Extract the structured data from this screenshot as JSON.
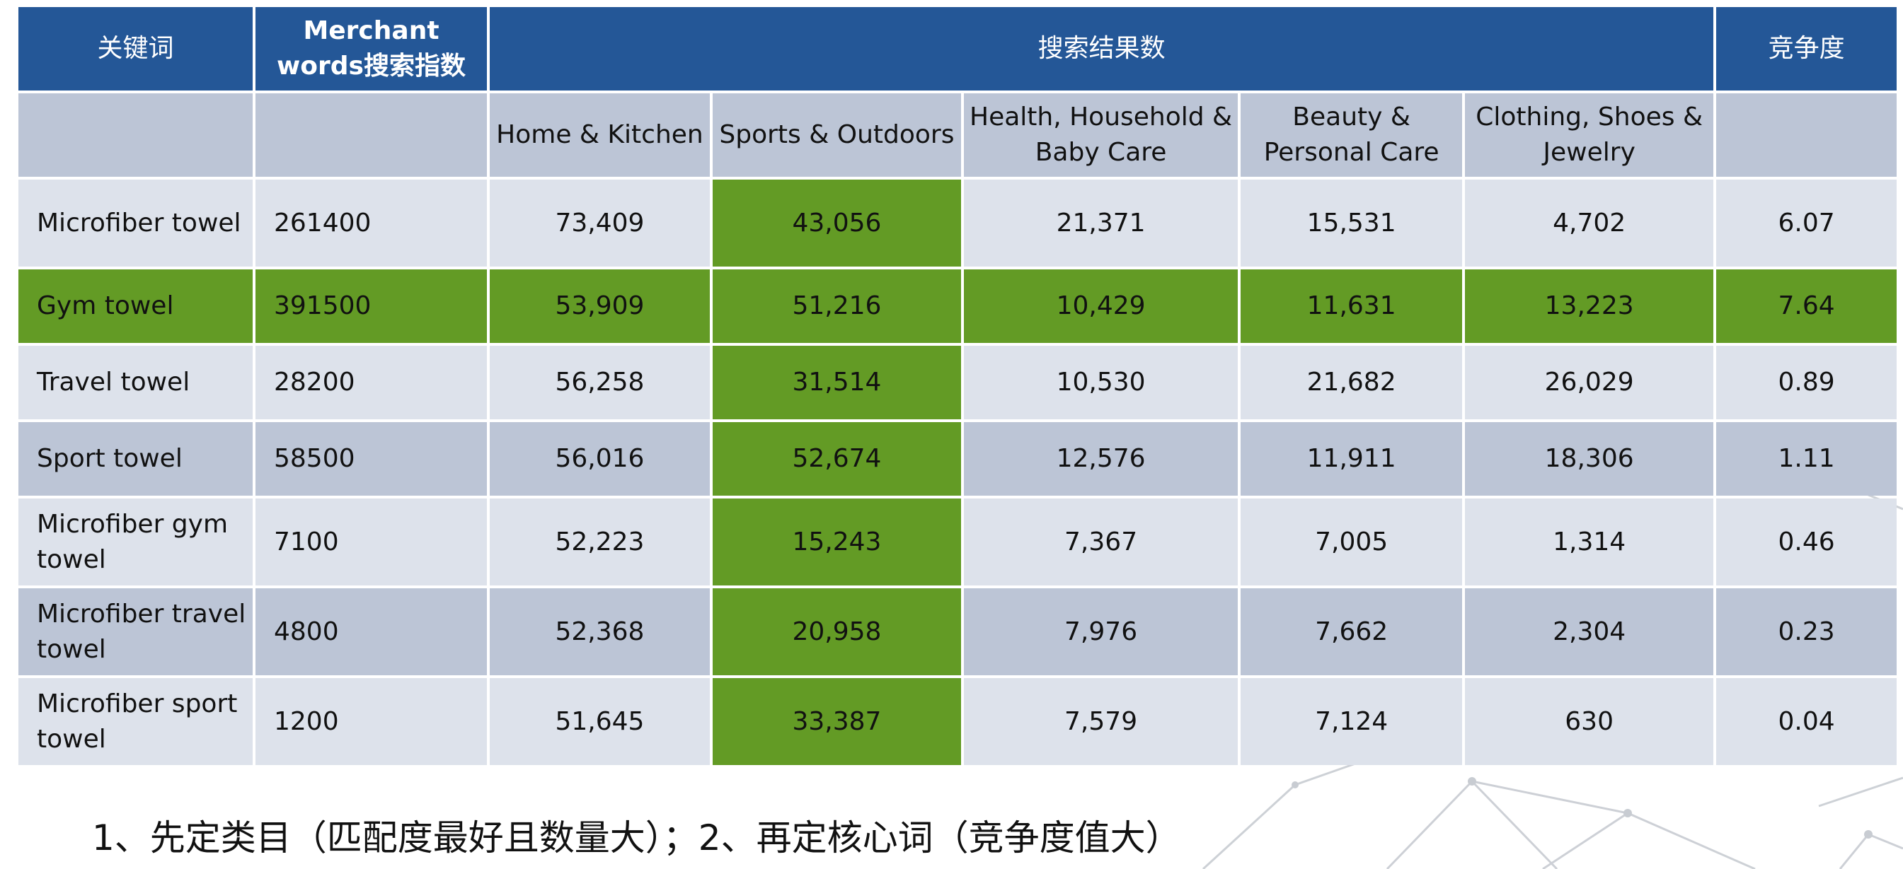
{
  "header": {
    "keyword": "关键词",
    "merchant": "Merchant words搜索指数",
    "search_results": "搜索结果数",
    "competition": "竞争度"
  },
  "categories": [
    "Home & Kitchen",
    "Sports & Outdoors",
    "Health, Household & Baby Care",
    "Beauty & Personal Care",
    "Clothing, Shoes & Jewelry"
  ],
  "rows": [
    {
      "keyword": "Microfiber towel",
      "index": "261400",
      "values": [
        "73,409",
        "43,056",
        "21,371",
        "15,531",
        "4,702"
      ],
      "competition": "6.07"
    },
    {
      "keyword": "Gym towel",
      "index": "391500",
      "values": [
        "53,909",
        "51,216",
        "10,429",
        "11,631",
        "13,223"
      ],
      "competition": "7.64"
    },
    {
      "keyword": "Travel towel",
      "index": "28200",
      "values": [
        "56,258",
        "31,514",
        "10,530",
        "21,682",
        "26,029"
      ],
      "competition": "0.89"
    },
    {
      "keyword": "Sport towel",
      "index": "58500",
      "values": [
        "56,016",
        "52,674",
        "12,576",
        "11,911",
        "18,306"
      ],
      "competition": "1.11"
    },
    {
      "keyword": "Microfiber gym towel",
      "index": "7100",
      "values": [
        "52,223",
        "15,243",
        "7,367",
        "7,005",
        "1,314"
      ],
      "competition": "0.46"
    },
    {
      "keyword": "Microfiber travel towel",
      "index": "4800",
      "values": [
        "52,368",
        "20,958",
        "7,976",
        "7,662",
        "2,304"
      ],
      "competition": "0.23"
    },
    {
      "keyword": "Microfiber sport towel",
      "index": "1200",
      "values": [
        "51,645",
        "33,387",
        "7,579",
        "7,124",
        "630"
      ],
      "competition": "0.04"
    }
  ],
  "note": "1、先定类目（匹配度最好且数量大）；2、再定核心词（竞争度值大）",
  "colors": {
    "header_blue": "#245797",
    "row_light": "#dde2eb",
    "row_dark": "#bcc5d6",
    "highlight_green": "#639b25"
  }
}
